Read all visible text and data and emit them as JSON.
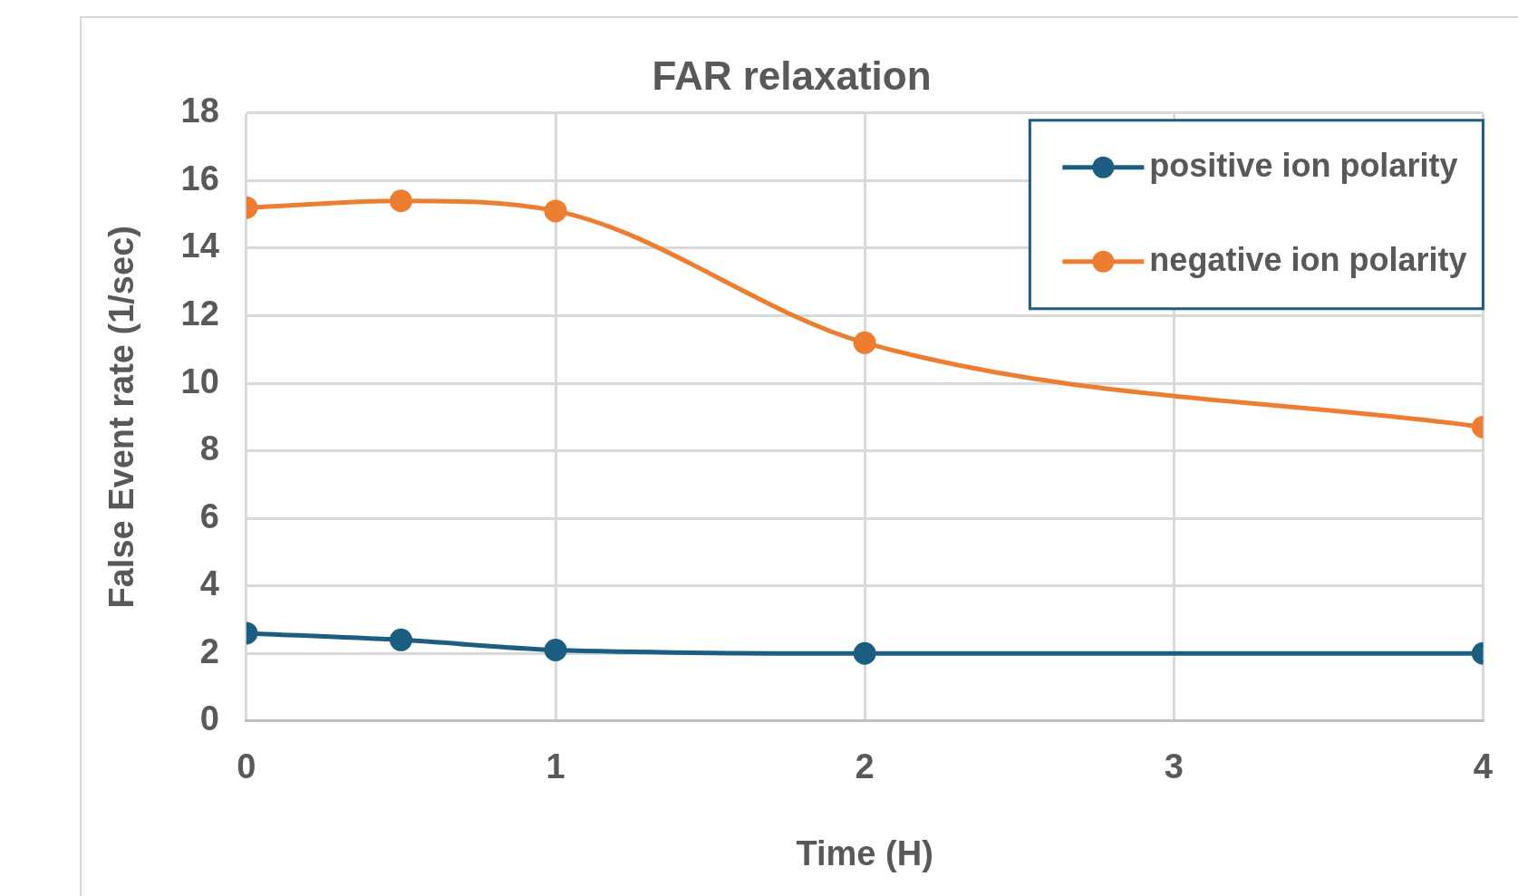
{
  "chart_data": {
    "type": "line",
    "title": "FAR relaxation",
    "xlabel": "Time (H)",
    "ylabel": "False Event rate (1/sec)",
    "xlim": [
      0,
      4
    ],
    "xticks": [
      0,
      1,
      2,
      3,
      4
    ],
    "ylim": [
      0,
      18
    ],
    "yticks": [
      0,
      2,
      4,
      6,
      8,
      10,
      12,
      14,
      16,
      18
    ],
    "grid": true,
    "legend": "top right",
    "marker": "circle",
    "series": [
      {
        "name": "positive ion polarity",
        "color": "#1b5e82",
        "x": [
          0,
          0.5,
          1,
          2,
          4
        ],
        "values": [
          2.6,
          2.4,
          2.1,
          2.0,
          2.0
        ]
      },
      {
        "name": "negative ion polarity",
        "color": "#ed7d31",
        "x": [
          0,
          0.5,
          1,
          2,
          4
        ],
        "values": [
          15.2,
          15.4,
          15.1,
          11.2,
          8.7
        ]
      }
    ]
  }
}
